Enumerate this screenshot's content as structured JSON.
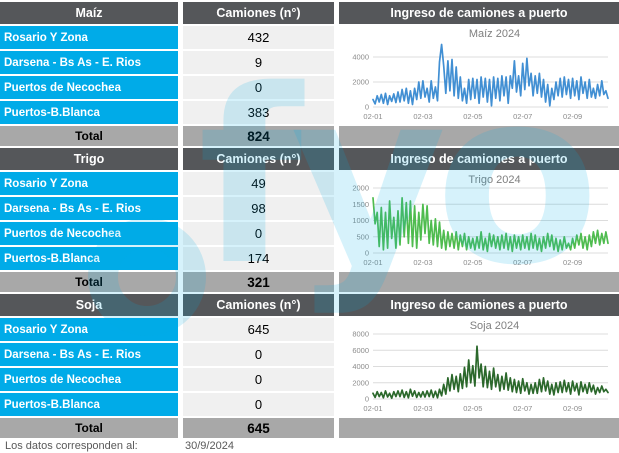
{
  "page": {
    "footer_label": "Los datos corresponden al:",
    "footer_date": "30/9/2024",
    "watermark_text": "fyo"
  },
  "colors": {
    "header_bg": "#55575A",
    "row_label_bg": "#00ABE8",
    "value_bg": "#F0F0F0",
    "total_bg": "#A8A8A8",
    "grid": "#DCDCDC",
    "tick_label": "#8C8C8C",
    "chart_title": "#7F7F7F",
    "maiz_line": "#418FD3",
    "trigo_line": "#4FBC4F",
    "soja_line": "#2B682B"
  },
  "sections": [
    {
      "title": "Maíz",
      "column_header": "Camiones (n°)",
      "chart_header": "Ingreso de camiones a puerto",
      "rows": [
        {
          "label": "Rosario Y Zona",
          "value": "432"
        },
        {
          "label": "Darsena - Bs As - E. Rios",
          "value": "9"
        },
        {
          "label": "Puertos de Necochea",
          "value": "0"
        },
        {
          "label": "Puertos-B.Blanca",
          "value": "383"
        }
      ],
      "total_label": "Total",
      "total_value": "824"
    },
    {
      "title": "Trigo",
      "column_header": "Camiones (n°)",
      "chart_header": "Ingreso de camiones a puerto",
      "rows": [
        {
          "label": "Rosario Y Zona",
          "value": "49"
        },
        {
          "label": "Darsena - Bs As - E. Rios",
          "value": "98"
        },
        {
          "label": "Puertos de Necochea",
          "value": "0"
        },
        {
          "label": "Puertos-B.Blanca",
          "value": "174"
        }
      ],
      "total_label": "Total",
      "total_value": "321"
    },
    {
      "title": "Soja",
      "column_header": "Camiones (n°)",
      "chart_header": "Ingreso de camiones a puerto",
      "rows": [
        {
          "label": "Rosario Y Zona",
          "value": "645"
        },
        {
          "label": "Darsena - Bs As - E. Rios",
          "value": "0"
        },
        {
          "label": "Puertos de Necochea",
          "value": "0"
        },
        {
          "label": "Puertos-B.Blanca",
          "value": "0"
        }
      ],
      "total_label": "Total",
      "total_value": "645"
    }
  ],
  "chart_data": [
    {
      "type": "line",
      "title": "Maíz 2024",
      "color": "#418FD3",
      "x_tick_labels": [
        "02-01",
        "02-03",
        "02-05",
        "02-07",
        "02-09"
      ],
      "x_tick_indices": [
        0,
        24,
        48,
        72,
        96
      ],
      "y_ticks": [
        0,
        2000,
        4000
      ],
      "ylim": [
        0,
        5200
      ],
      "values": [
        600,
        250,
        900,
        400,
        1000,
        300,
        1100,
        200,
        900,
        450,
        1050,
        350,
        1200,
        400,
        1400,
        500,
        1500,
        300,
        1300,
        200,
        1500,
        600,
        2000,
        700,
        2100,
        800,
        1500,
        400,
        2100,
        700,
        1600,
        500,
        3600,
        5000,
        3300,
        1100,
        3700,
        1300,
        3800,
        900,
        3200,
        700,
        2400,
        500,
        1500,
        300,
        2200,
        600,
        2300,
        700,
        2200,
        300,
        2400,
        800,
        2300,
        400,
        2200,
        100,
        2400,
        700,
        2300,
        500,
        2500,
        900,
        2400,
        300,
        2500,
        1500,
        3700,
        1200,
        2500,
        900,
        3500,
        1400,
        3900,
        1700,
        2700,
        900,
        2500,
        1100,
        2700,
        800,
        2200,
        400,
        1800,
        100,
        1500,
        600,
        2000,
        900,
        2300,
        800,
        2400,
        1000,
        2200,
        700,
        2300,
        900,
        2100,
        600,
        2400,
        1100,
        2000,
        700,
        2200,
        800,
        1500,
        700,
        1800,
        900,
        2100,
        1000,
        1300,
        700
      ]
    },
    {
      "type": "line",
      "title": "Trigo 2024",
      "color": "#4FBC4F",
      "x_tick_labels": [
        "02-01",
        "02-03",
        "02-05",
        "02-07",
        "02-09"
      ],
      "x_tick_indices": [
        0,
        24,
        48,
        72,
        96
      ],
      "y_ticks": [
        0,
        500,
        1000,
        1500,
        2000
      ],
      "ylim": [
        0,
        2000
      ],
      "values": [
        1700,
        900,
        1250,
        200,
        1400,
        100,
        1250,
        150,
        1600,
        450,
        1100,
        150,
        1300,
        250,
        1700,
        500,
        1550,
        300,
        1600,
        200,
        1450,
        150,
        1250,
        400,
        1500,
        600,
        1450,
        300,
        1000,
        250,
        1050,
        200,
        950,
        150,
        700,
        100,
        650,
        200,
        600,
        150,
        650,
        100,
        550,
        200,
        600,
        100,
        500,
        150,
        450,
        100,
        500,
        150,
        650,
        100,
        450,
        50,
        600,
        200,
        550,
        150,
        500,
        100,
        550,
        150,
        600,
        100,
        500,
        50,
        550,
        150,
        500,
        100,
        550,
        150,
        500,
        100,
        600,
        150,
        550,
        100,
        450,
        50,
        500,
        150,
        600,
        200,
        550,
        100,
        450,
        50,
        400,
        100,
        500,
        150,
        300,
        100,
        450,
        150,
        550,
        250,
        600,
        150,
        500,
        100,
        550,
        200,
        650,
        300,
        700,
        250,
        600,
        300,
        650,
        300
      ]
    },
    {
      "type": "line",
      "title": "Soja 2024",
      "color": "#2B682B",
      "x_tick_labels": [
        "02-01",
        "02-03",
        "02-05",
        "02-07",
        "02-09"
      ],
      "x_tick_indices": [
        0,
        24,
        48,
        72,
        96
      ],
      "y_ticks": [
        0,
        2000,
        4000,
        6000,
        8000
      ],
      "ylim": [
        0,
        8000
      ],
      "values": [
        700,
        200,
        900,
        300,
        800,
        150,
        1000,
        250,
        700,
        100,
        900,
        300,
        1000,
        300,
        1100,
        200,
        900,
        150,
        1200,
        350,
        1000,
        200,
        800,
        250,
        900,
        250,
        1000,
        300,
        1100,
        200,
        950,
        150,
        1200,
        400,
        1800,
        600,
        2600,
        1000,
        3000,
        1200,
        2800,
        900,
        3100,
        1300,
        3900,
        1500,
        4800,
        2000,
        4100,
        1600,
        6500,
        2600,
        4300,
        1500,
        4000,
        1400,
        3400,
        1200,
        3800,
        1500,
        3000,
        1000,
        2800,
        1200,
        3200,
        1100,
        2600,
        900,
        2400,
        800,
        2200,
        700,
        2500,
        1000,
        2000,
        600,
        1800,
        700,
        2000,
        700,
        2400,
        900,
        2600,
        1000,
        2200,
        600,
        1800,
        500,
        2000,
        800,
        2100,
        800,
        2300,
        900,
        2000,
        600,
        2200,
        1000,
        1900,
        500,
        2100,
        900,
        1800,
        700,
        2000,
        900,
        1700,
        600,
        1400,
        800,
        1600,
        900,
        1200,
        800
      ]
    }
  ]
}
